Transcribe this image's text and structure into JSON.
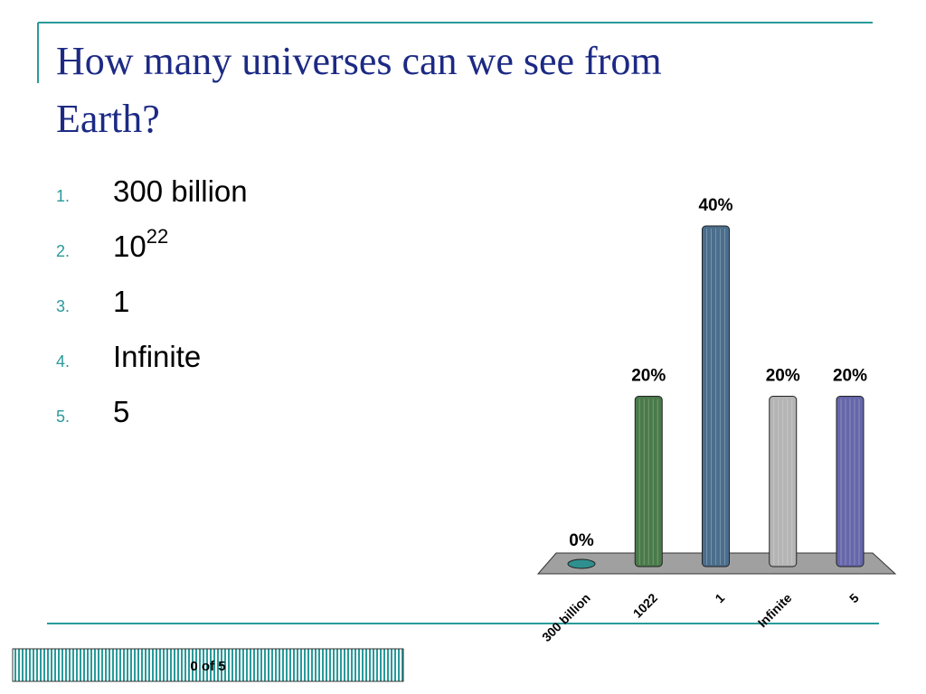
{
  "slide": {
    "title_lines": [
      "How many universes can we see from",
      "Earth?"
    ],
    "list": [
      {
        "number": "1.",
        "text": "300 billion"
      },
      {
        "number": "2.",
        "text": "10",
        "sup": "22"
      },
      {
        "number": "3.",
        "text": "1"
      },
      {
        "number": "4.",
        "text": "Infinite"
      },
      {
        "number": "5.",
        "text": "5"
      }
    ],
    "counter": "0 of 5"
  },
  "chart_data": {
    "type": "bar",
    "categories": [
      "300 billion",
      "1022",
      "1",
      "Infinite",
      "5"
    ],
    "values": [
      0,
      20,
      40,
      20,
      20
    ],
    "value_labels": [
      "0%",
      "20%",
      "40%",
      "20%",
      "20%"
    ],
    "colors": [
      "#2f8f8f",
      "#4a7a4a",
      "#4a6e8c",
      "#b4b4b4",
      "#6666aa"
    ]
  }
}
